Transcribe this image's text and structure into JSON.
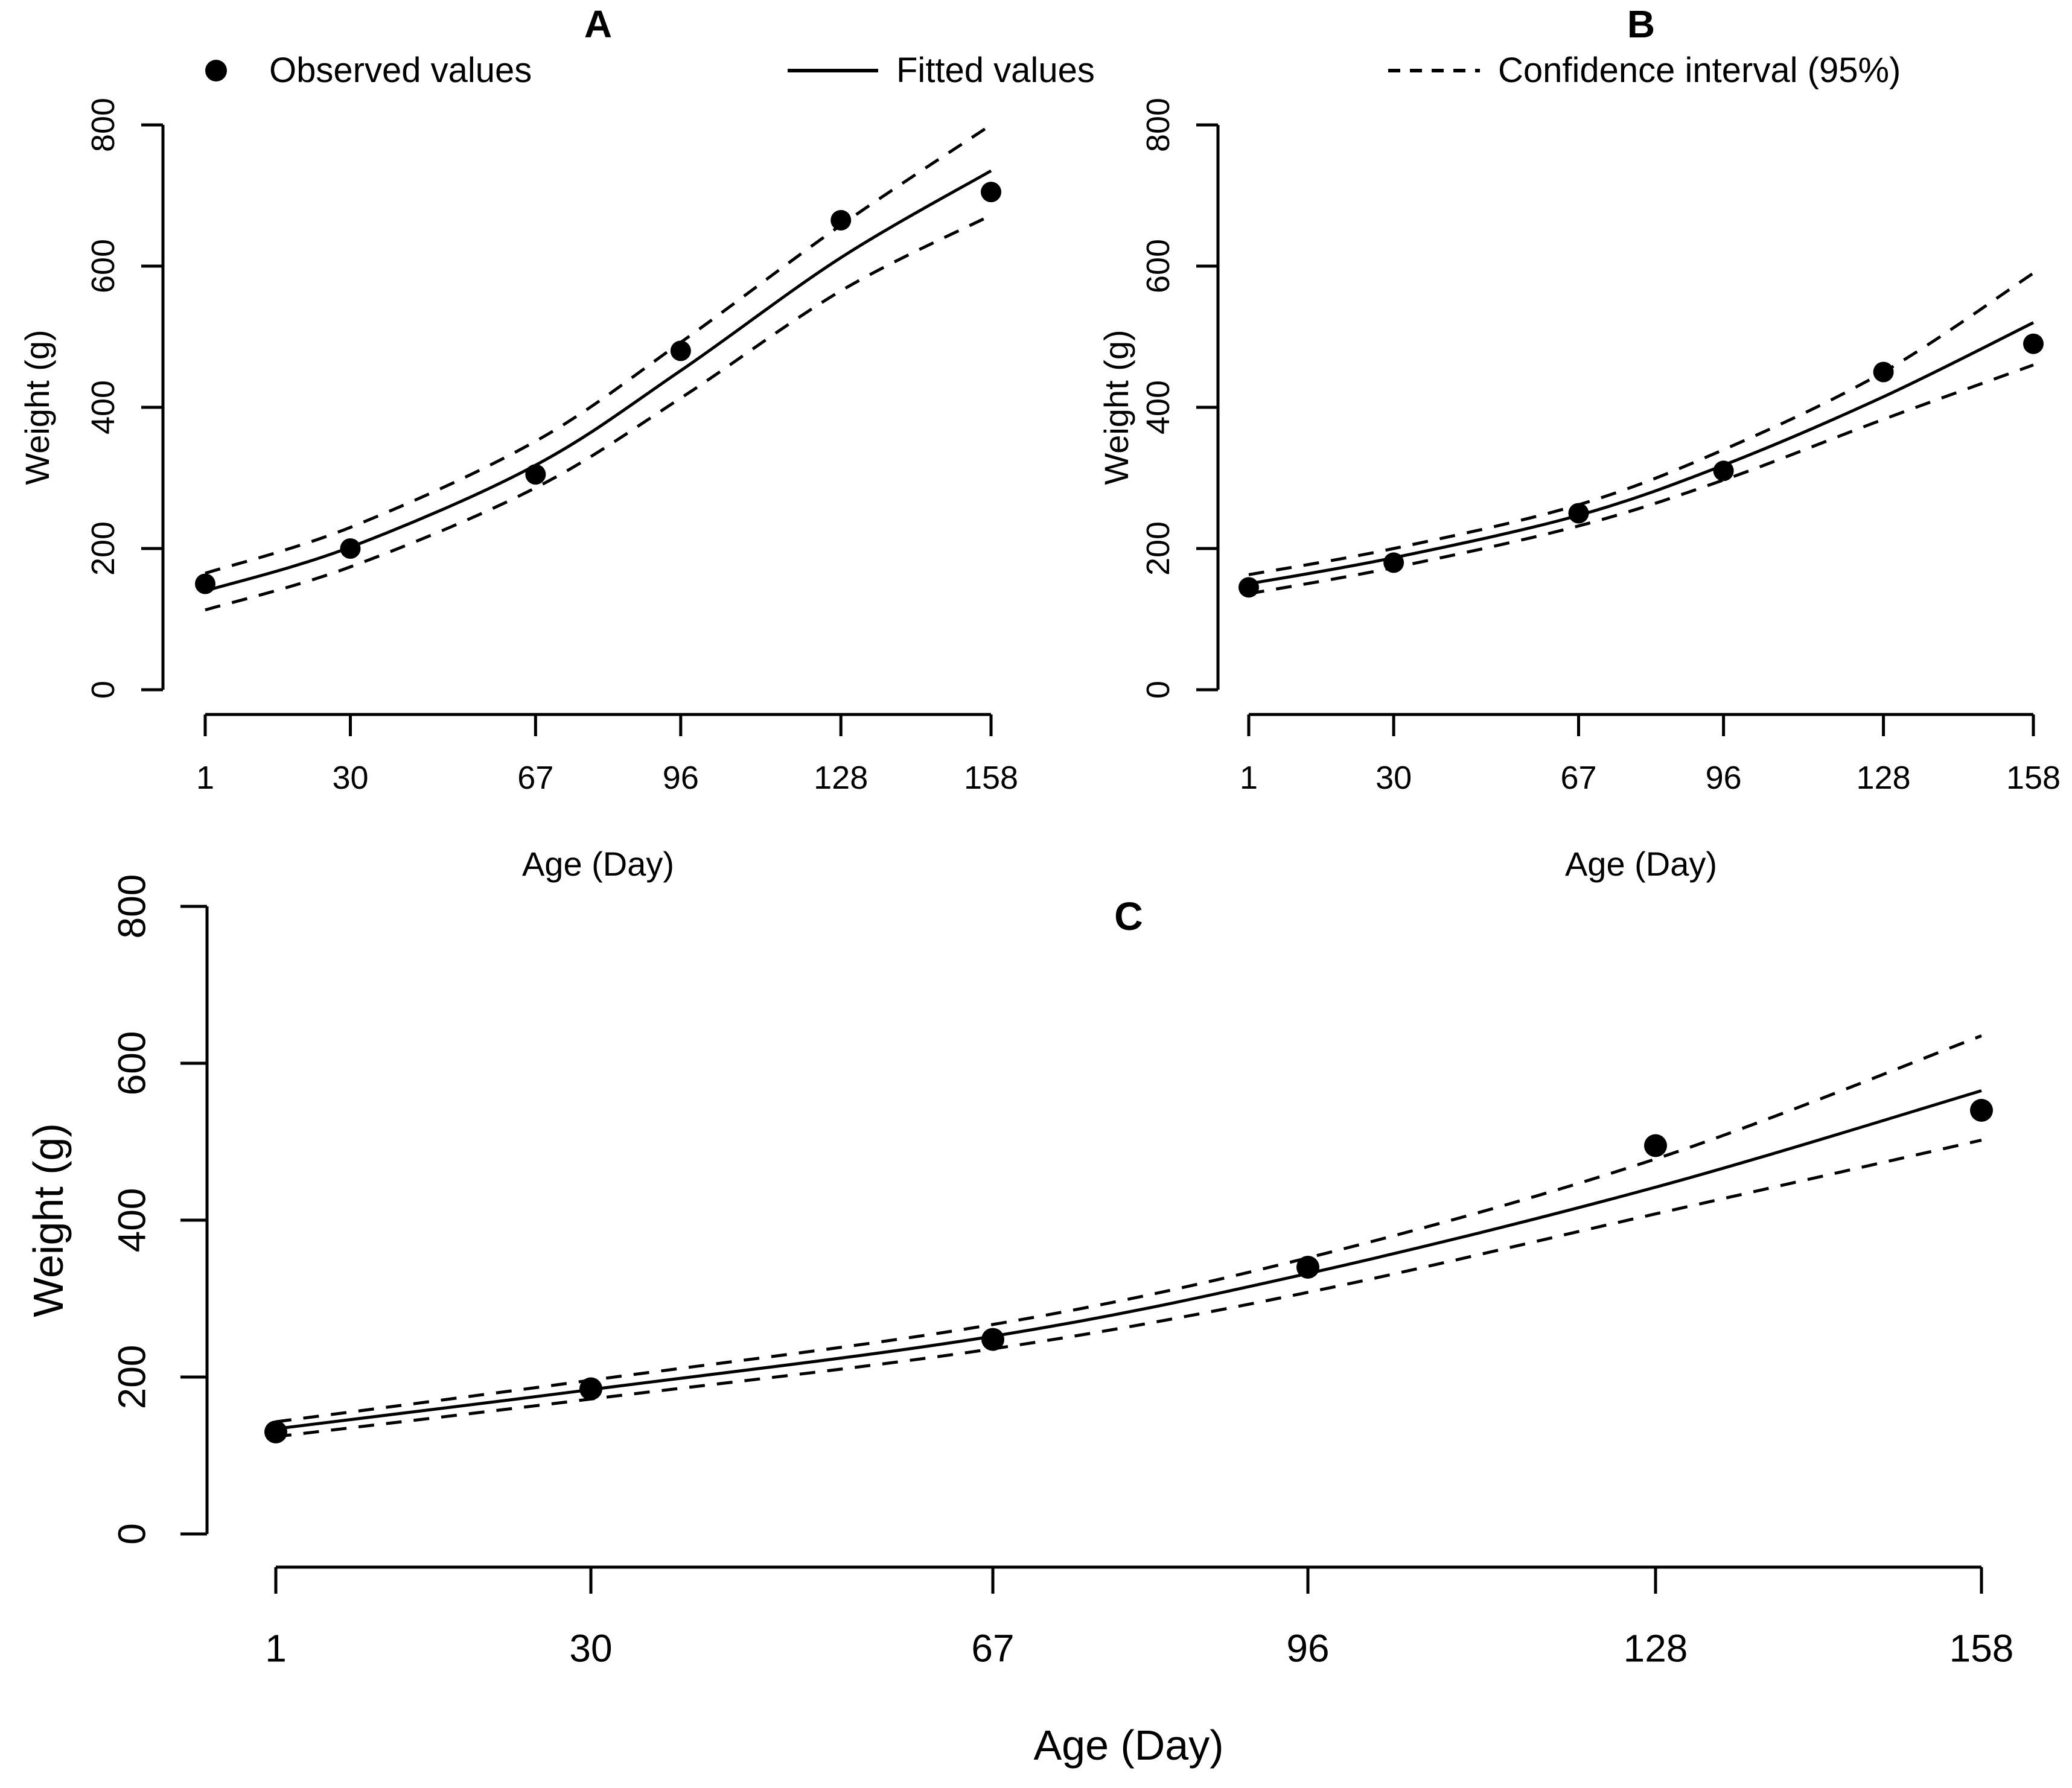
{
  "figure": {
    "background": "#ffffff",
    "foreground": "#000000",
    "legend": [
      {
        "symbol": "filled-circle",
        "label": "Observed values"
      },
      {
        "symbol": "solid-line",
        "label": "Fitted values"
      },
      {
        "symbol": "dashed-line",
        "label": "Confidence interval (95%)"
      }
    ]
  },
  "chart_data": [
    {
      "id": "A",
      "type": "scatter",
      "title": "A",
      "xlabel": "Age (Day)",
      "ylabel": "Weight (g)",
      "x": [
        1,
        30,
        67,
        96,
        128,
        158
      ],
      "x_ticks": [
        "1",
        "30",
        "67",
        "96",
        "128",
        "158"
      ],
      "y_ticks": [
        0,
        200,
        400,
        600,
        800
      ],
      "xlim": [
        1,
        158
      ],
      "ylim": [
        0,
        800
      ],
      "grid": false,
      "series": [
        {
          "name": "Observed values",
          "style": "points",
          "values": [
            150,
            200,
            305,
            480,
            665,
            705
          ]
        },
        {
          "name": "Fitted values",
          "style": "solid-line",
          "values": [
            140,
            202,
            318,
            452,
            612,
            735
          ]
        },
        {
          "name": "Confidence interval upper (95%)",
          "style": "dashed-line",
          "values": [
            165,
            230,
            352,
            492,
            658,
            800
          ]
        },
        {
          "name": "Confidence interval lower (95%)",
          "style": "dashed-line",
          "values": [
            113,
            174,
            286,
            413,
            565,
            672
          ]
        }
      ]
    },
    {
      "id": "B",
      "type": "scatter",
      "title": "B",
      "xlabel": "Age (Day)",
      "ylabel": "Weight (g)",
      "x": [
        1,
        30,
        67,
        96,
        128,
        158
      ],
      "x_ticks": [
        "1",
        "30",
        "67",
        "96",
        "128",
        "158"
      ],
      "y_ticks": [
        0,
        200,
        400,
        600,
        800
      ],
      "xlim": [
        1,
        158
      ],
      "ylim": [
        0,
        800
      ],
      "grid": false,
      "series": [
        {
          "name": "Observed values",
          "style": "points",
          "values": [
            145,
            180,
            250,
            310,
            450,
            490
          ]
        },
        {
          "name": "Fitted values",
          "style": "solid-line",
          "values": [
            150,
            187,
            247,
            318,
            415,
            520
          ]
        },
        {
          "name": "Confidence interval upper (95%)",
          "style": "dashed-line",
          "values": [
            163,
            200,
            262,
            340,
            450,
            590
          ]
        },
        {
          "name": "Confidence interval lower (95%)",
          "style": "dashed-line",
          "values": [
            136,
            173,
            232,
            297,
            383,
            460
          ]
        }
      ]
    },
    {
      "id": "C",
      "type": "scatter",
      "title": "C",
      "xlabel": "Age (Day)",
      "ylabel": "Weight (g)",
      "x": [
        1,
        30,
        67,
        96,
        128,
        158
      ],
      "x_ticks": [
        "1",
        "30",
        "67",
        "96",
        "128",
        "158"
      ],
      "y_ticks": [
        0,
        200,
        400,
        600,
        800
      ],
      "xlim": [
        1,
        158
      ],
      "ylim": [
        0,
        800
      ],
      "grid": false,
      "series": [
        {
          "name": "Observed values",
          "style": "points",
          "values": [
            130,
            185,
            248,
            340,
            495,
            540
          ]
        },
        {
          "name": "Fitted values",
          "style": "solid-line",
          "values": [
            134,
            184,
            252,
            332,
            442,
            565
          ]
        },
        {
          "name": "Confidence interval upper (95%)",
          "style": "dashed-line",
          "values": [
            143,
            196,
            267,
            352,
            478,
            635
          ]
        },
        {
          "name": "Confidence interval lower (95%)",
          "style": "dashed-line",
          "values": [
            124,
            172,
            236,
            308,
            408,
            502
          ]
        }
      ]
    }
  ]
}
